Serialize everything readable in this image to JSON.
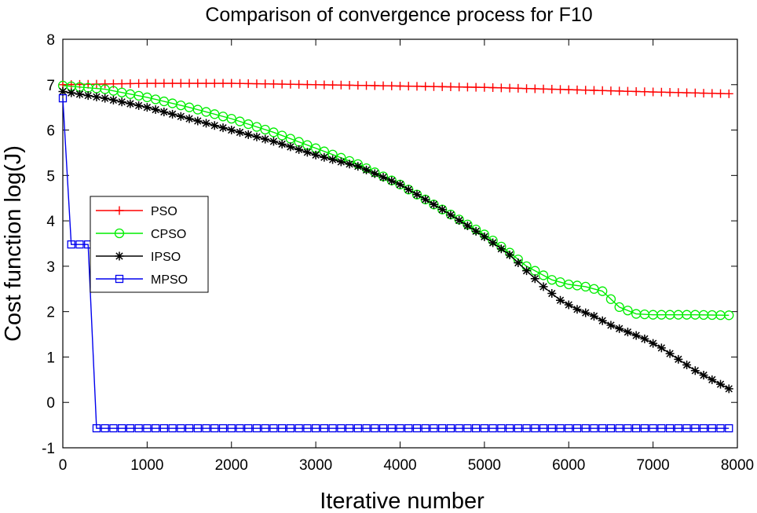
{
  "chart_data": {
    "type": "line",
    "title": "Comparison of convergence process for F10",
    "xlabel": "Iterative number",
    "ylabel": "Cost function log(J)",
    "xlim": [
      0,
      8000
    ],
    "ylim": [
      -1,
      8
    ],
    "xticks": [
      0,
      1000,
      2000,
      3000,
      4000,
      5000,
      6000,
      7000,
      8000
    ],
    "yticks": [
      -1,
      0,
      1,
      2,
      3,
      4,
      5,
      6,
      7,
      8
    ],
    "legend_position": "middle-left",
    "series": [
      {
        "name": "PSO",
        "color": "#ff0000",
        "marker": "plus",
        "x": [
          0,
          1000,
          2000,
          3000,
          4000,
          5000,
          6000,
          7000,
          7900
        ],
        "y": [
          7.0,
          7.03,
          7.03,
          7.0,
          6.97,
          6.94,
          6.89,
          6.84,
          6.8
        ]
      },
      {
        "name": "CPSO",
        "color": "#00ee00",
        "marker": "circle",
        "x": [
          0,
          500,
          1000,
          1500,
          2000,
          2500,
          3000,
          3500,
          4000,
          4500,
          5000,
          5300,
          5500,
          5800,
          6000,
          6200,
          6400,
          6600,
          6800,
          7000,
          7500,
          7900
        ],
        "y": [
          6.98,
          6.9,
          6.72,
          6.5,
          6.25,
          5.95,
          5.6,
          5.25,
          4.8,
          4.25,
          3.7,
          3.3,
          3.0,
          2.7,
          2.6,
          2.55,
          2.45,
          2.1,
          1.95,
          1.93,
          1.93,
          1.92
        ]
      },
      {
        "name": "IPSO",
        "color": "#000000",
        "marker": "star",
        "x": [
          0,
          500,
          1000,
          1500,
          2000,
          2500,
          3000,
          3500,
          4000,
          4500,
          5000,
          5300,
          5500,
          5700,
          5900,
          6100,
          6300,
          6500,
          6700,
          6900,
          7100,
          7300,
          7500,
          7700,
          7900
        ],
        "y": [
          6.85,
          6.7,
          6.5,
          6.25,
          6.0,
          5.75,
          5.45,
          5.2,
          4.8,
          4.25,
          3.65,
          3.25,
          2.9,
          2.55,
          2.25,
          2.05,
          1.9,
          1.7,
          1.55,
          1.4,
          1.2,
          0.95,
          0.7,
          0.5,
          0.3
        ]
      },
      {
        "name": "MPSO",
        "color": "#0000ee",
        "marker": "square",
        "x": [
          0,
          100,
          200,
          300,
          400,
          1000,
          2000,
          3000,
          4000,
          5000,
          6000,
          7000,
          7900
        ],
        "y": [
          6.7,
          3.48,
          3.48,
          3.48,
          -0.57,
          -0.57,
          -0.57,
          -0.57,
          -0.57,
          -0.57,
          -0.57,
          -0.57,
          -0.57
        ]
      }
    ]
  }
}
